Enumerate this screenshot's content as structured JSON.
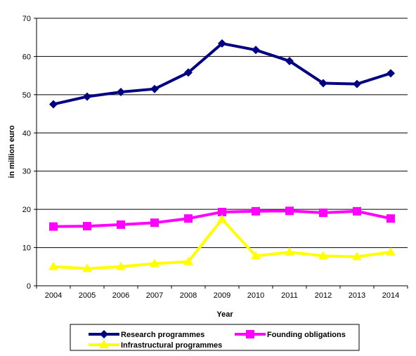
{
  "chart_data": {
    "type": "line",
    "title": "",
    "xlabel": "Year",
    "ylabel": "in million  euro",
    "ylim": [
      0,
      70
    ],
    "yticks": [
      0,
      10,
      20,
      30,
      40,
      50,
      60,
      70
    ],
    "grid": "horizontal",
    "legend_position": "bottom",
    "categories": [
      "2004",
      "2005",
      "2006",
      "2007",
      "2008",
      "2009",
      "2010",
      "2011",
      "2012",
      "2013",
      "2014"
    ],
    "series": [
      {
        "name": "Research programmes",
        "color": "#000080",
        "marker": "diamond",
        "values": [
          47.5,
          49.5,
          50.7,
          51.5,
          55.8,
          63.4,
          61.7,
          58.8,
          53.0,
          52.8,
          55.6
        ]
      },
      {
        "name": "Founding obligations",
        "color": "#FF00FF",
        "marker": "square",
        "values": [
          15.5,
          15.6,
          16.0,
          16.5,
          17.6,
          19.3,
          19.5,
          19.6,
          19.1,
          19.5,
          17.6
        ]
      },
      {
        "name": "Infrastructural programmes",
        "color": "#FFFF00",
        "marker": "triangle",
        "values": [
          5.0,
          4.5,
          5.0,
          5.8,
          6.3,
          17.4,
          7.8,
          8.8,
          7.8,
          7.6,
          8.8
        ]
      }
    ]
  }
}
